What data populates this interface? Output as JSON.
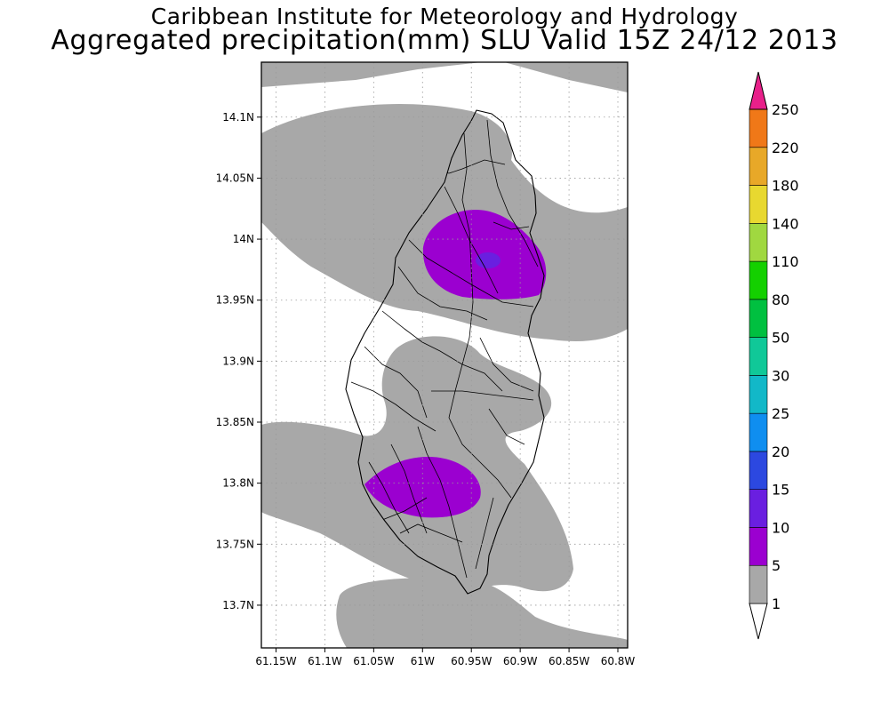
{
  "header": {
    "title_line1": "Caribbean Institute for Meteorology and Hydrology",
    "title_line2": "Aggregated precipitation(mm) SLU Valid 15Z 24/12 2013"
  },
  "map": {
    "lon_range": [
      -61.165,
      -60.79
    ],
    "lat_range": [
      13.665,
      14.145
    ],
    "lon_ticks": [
      {
        "value": -61.15,
        "label": "61.15W"
      },
      {
        "value": -61.1,
        "label": "61.1W"
      },
      {
        "value": -61.05,
        "label": "61.05W"
      },
      {
        "value": -61.0,
        "label": "61W"
      },
      {
        "value": -60.95,
        "label": "60.95W"
      },
      {
        "value": -60.9,
        "label": "60.9W"
      },
      {
        "value": -60.85,
        "label": "60.85W"
      },
      {
        "value": -60.8,
        "label": "60.8W"
      }
    ],
    "lat_ticks": [
      {
        "value": 14.1,
        "label": "14.1N"
      },
      {
        "value": 14.05,
        "label": "14.05N"
      },
      {
        "value": 14.0,
        "label": "14N"
      },
      {
        "value": 13.95,
        "label": "13.95N"
      },
      {
        "value": 13.9,
        "label": "13.9N"
      },
      {
        "value": 13.85,
        "label": "13.85N"
      },
      {
        "value": 13.8,
        "label": "13.8N"
      },
      {
        "value": 13.75,
        "label": "13.75N"
      },
      {
        "value": 13.7,
        "label": "13.7N"
      }
    ],
    "colors": {
      "gray_1_5": "#a8a8a8",
      "purple_5_10": "#9b00d0",
      "purple_10_15": "#6a1fe0",
      "coast": "#000000"
    }
  },
  "colorbar": {
    "levels": [
      {
        "label": "1",
        "color": "#a8a8a8"
      },
      {
        "label": "5",
        "color": "#9b00d0"
      },
      {
        "label": "10",
        "color": "#6a1fe0"
      },
      {
        "label": "15",
        "color": "#2c48e0"
      },
      {
        "label": "20",
        "color": "#0f8ef0"
      },
      {
        "label": "25",
        "color": "#12b8c8"
      },
      {
        "label": "30",
        "color": "#10c898"
      },
      {
        "label": "50",
        "color": "#00c040"
      },
      {
        "label": "80",
        "color": "#14d000"
      },
      {
        "label": "110",
        "color": "#a0d840"
      },
      {
        "label": "140",
        "color": "#e8d830"
      },
      {
        "label": "180",
        "color": "#e8a828"
      },
      {
        "label": "220",
        "color": "#f07818"
      },
      {
        "label": "250",
        "color": "#f03838"
      }
    ],
    "top_arrow_color": "#e8208a"
  }
}
